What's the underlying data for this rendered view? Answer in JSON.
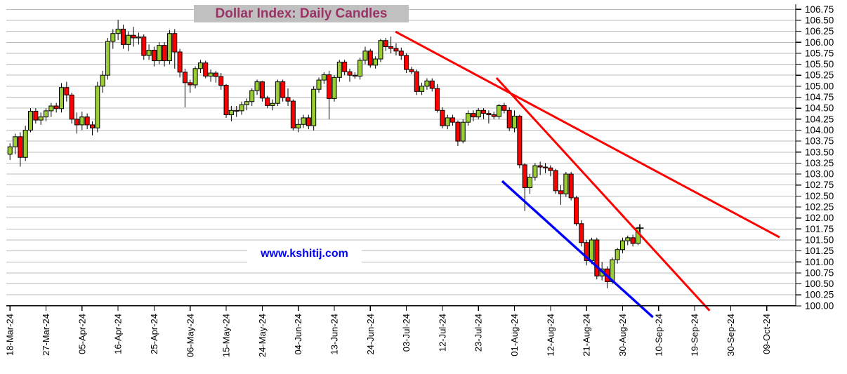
{
  "title": "Dollar Index: Daily Candles",
  "watermark": "www.kshitij.com",
  "colors": {
    "candle_up": "#9acd32",
    "candle_down": "#ff0000",
    "candle_border": "#000000",
    "wick": "#000000",
    "grid": "#bdbdbd",
    "axis": "#000000",
    "tick_label": "#000000",
    "title_text": "#993366",
    "title_bg": "#c0c0c0",
    "watermark_text": "#0000ff",
    "trend_red": "#ff0000",
    "trend_blue": "#0000ff",
    "last_price_marker": "#000000"
  },
  "chart_data": {
    "type": "candlestick",
    "title": "Dollar Index: Daily Candles",
    "xlabel": "",
    "ylabel": "",
    "ylim": [
      100.0,
      106.88
    ],
    "ytick_step": 0.25,
    "grid": true,
    "legend": false,
    "yticks": [
      "106.75",
      "106.50",
      "106.25",
      "106.00",
      "105.75",
      "105.50",
      "105.25",
      "105.00",
      "104.75",
      "104.50",
      "104.25",
      "104.00",
      "103.75",
      "103.50",
      "103.25",
      "103.00",
      "102.75",
      "102.50",
      "102.25",
      "102.00",
      "101.75",
      "101.50",
      "101.25",
      "101.00",
      "100.75",
      "100.50",
      "100.25",
      "100.00"
    ],
    "xticks": [
      {
        "label": "18-Mar-24",
        "index": 0
      },
      {
        "label": "27-Mar-24",
        "index": 7
      },
      {
        "label": "05-Apr-24",
        "index": 14
      },
      {
        "label": "16-Apr-24",
        "index": 21
      },
      {
        "label": "25-Apr-24",
        "index": 28
      },
      {
        "label": "06-May-24",
        "index": 35
      },
      {
        "label": "15-May-24",
        "index": 42
      },
      {
        "label": "24-May-24",
        "index": 49
      },
      {
        "label": "04-Jun-24",
        "index": 56
      },
      {
        "label": "13-Jun-24",
        "index": 63
      },
      {
        "label": "24-Jun-24",
        "index": 70
      },
      {
        "label": "03-Jul-24",
        "index": 77
      },
      {
        "label": "12-Jul-24",
        "index": 84
      },
      {
        "label": "23-Jul-24",
        "index": 91
      },
      {
        "label": "01-Aug-24",
        "index": 98
      },
      {
        "label": "12-Aug-24",
        "index": 105
      },
      {
        "label": "21-Aug-24",
        "index": 112
      },
      {
        "label": "30-Aug-24",
        "index": 119
      },
      {
        "label": "10-Sep-24",
        "index": 126
      },
      {
        "label": "19-Sep-24",
        "index": 133
      },
      {
        "label": "30-Sep-24",
        "index": 140
      },
      {
        "label": "09-Oct-24",
        "index": 147
      }
    ],
    "columns": [
      "date",
      "open",
      "high",
      "low",
      "close"
    ],
    "candles": [
      [
        "18-Mar-24",
        103.45,
        103.7,
        103.32,
        103.62
      ],
      [
        "19-Mar-24",
        103.62,
        103.92,
        103.45,
        103.85
      ],
      [
        "20-Mar-24",
        103.85,
        103.95,
        103.17,
        103.38
      ],
      [
        "21-Mar-24",
        103.38,
        104.1,
        103.3,
        104.0
      ],
      [
        "22-Mar-24",
        104.0,
        104.5,
        103.95,
        104.43
      ],
      [
        "25-Mar-24",
        104.43,
        104.5,
        104.15,
        104.23
      ],
      [
        "26-Mar-24",
        104.23,
        104.4,
        104.12,
        104.3
      ],
      [
        "27-Mar-24",
        104.3,
        104.5,
        104.2,
        104.44
      ],
      [
        "28-Mar-24",
        104.44,
        104.62,
        104.3,
        104.55
      ],
      [
        "29-Mar-24",
        104.55,
        104.62,
        104.4,
        104.49
      ],
      [
        "01-Apr-24",
        104.49,
        105.07,
        104.4,
        104.97
      ],
      [
        "02-Apr-24",
        104.97,
        105.1,
        104.65,
        104.8
      ],
      [
        "03-Apr-24",
        104.8,
        104.85,
        104.15,
        104.25
      ],
      [
        "04-Apr-24",
        104.25,
        104.4,
        103.92,
        104.12
      ],
      [
        "05-Apr-24",
        104.12,
        104.42,
        104.0,
        104.3
      ],
      [
        "08-Apr-24",
        104.3,
        104.38,
        104.02,
        104.12
      ],
      [
        "09-Apr-24",
        104.12,
        104.2,
        103.88,
        104.05
      ],
      [
        "10-Apr-24",
        104.05,
        105.1,
        103.95,
        105.0
      ],
      [
        "11-Apr-24",
        105.0,
        105.35,
        104.85,
        105.25
      ],
      [
        "12-Apr-24",
        105.25,
        106.1,
        105.15,
        106.02
      ],
      [
        "15-Apr-24",
        106.02,
        106.3,
        105.85,
        106.2
      ],
      [
        "16-Apr-24",
        106.2,
        106.51,
        106.05,
        106.3
      ],
      [
        "17-Apr-24",
        106.3,
        106.4,
        105.85,
        105.95
      ],
      [
        "18-Apr-24",
        105.95,
        106.25,
        105.8,
        106.16
      ],
      [
        "19-Apr-24",
        106.16,
        106.35,
        105.9,
        106.1
      ],
      [
        "22-Apr-24",
        106.1,
        106.22,
        105.95,
        106.12
      ],
      [
        "23-Apr-24",
        106.12,
        106.18,
        105.6,
        105.7
      ],
      [
        "24-Apr-24",
        105.7,
        105.95,
        105.6,
        105.82
      ],
      [
        "25-Apr-24",
        105.82,
        105.9,
        105.45,
        105.58
      ],
      [
        "26-Apr-24",
        105.58,
        106.0,
        105.5,
        105.93
      ],
      [
        "29-Apr-24",
        105.93,
        106.0,
        105.45,
        105.58
      ],
      [
        "30-Apr-24",
        105.58,
        106.28,
        105.5,
        106.2
      ],
      [
        "01-May-24",
        106.2,
        106.3,
        105.4,
        105.78
      ],
      [
        "02-May-24",
        105.78,
        105.85,
        105.2,
        105.32
      ],
      [
        "03-May-24",
        105.32,
        105.4,
        104.52,
        105.08
      ],
      [
        "06-May-24",
        105.08,
        105.15,
        104.85,
        105.03
      ],
      [
        "07-May-24",
        105.03,
        105.45,
        104.95,
        105.4
      ],
      [
        "08-May-24",
        105.4,
        105.6,
        105.3,
        105.53
      ],
      [
        "09-May-24",
        105.53,
        105.58,
        105.18,
        105.23
      ],
      [
        "10-May-24",
        105.23,
        105.38,
        105.1,
        105.3
      ],
      [
        "13-May-24",
        105.3,
        105.35,
        105.08,
        105.22
      ],
      [
        "14-May-24",
        105.22,
        105.3,
        104.92,
        105.02
      ],
      [
        "15-May-24",
        105.02,
        105.05,
        104.28,
        104.35
      ],
      [
        "16-May-24",
        104.35,
        104.55,
        104.2,
        104.45
      ],
      [
        "17-May-24",
        104.45,
        104.55,
        104.3,
        104.44
      ],
      [
        "20-May-24",
        104.44,
        104.65,
        104.35,
        104.58
      ],
      [
        "21-May-24",
        104.58,
        104.72,
        104.45,
        104.65
      ],
      [
        "22-May-24",
        104.65,
        104.95,
        104.55,
        104.9
      ],
      [
        "23-May-24",
        104.9,
        105.15,
        104.8,
        105.1
      ],
      [
        "24-May-24",
        105.1,
        105.12,
        104.65,
        104.73
      ],
      [
        "27-May-24",
        104.73,
        104.78,
        104.5,
        104.56
      ],
      [
        "28-May-24",
        104.56,
        104.7,
        104.45,
        104.61
      ],
      [
        "29-May-24",
        104.61,
        105.15,
        104.55,
        105.1
      ],
      [
        "30-May-24",
        105.1,
        105.15,
        104.65,
        104.74
      ],
      [
        "31-May-24",
        104.74,
        104.95,
        104.55,
        104.66
      ],
      [
        "03-Jun-24",
        104.66,
        104.7,
        103.99,
        104.05
      ],
      [
        "04-Jun-24",
        104.05,
        104.25,
        103.95,
        104.13
      ],
      [
        "05-Jun-24",
        104.13,
        104.35,
        104.05,
        104.28
      ],
      [
        "06-Jun-24",
        104.28,
        104.35,
        104.02,
        104.1
      ],
      [
        "07-Jun-24",
        104.1,
        105.0,
        103.99,
        104.93
      ],
      [
        "10-Jun-24",
        104.93,
        105.2,
        104.85,
        105.14
      ],
      [
        "11-Jun-24",
        105.14,
        105.32,
        105.05,
        105.26
      ],
      [
        "12-Jun-24",
        105.26,
        105.35,
        104.25,
        104.72
      ],
      [
        "13-Jun-24",
        104.72,
        105.25,
        104.65,
        105.2
      ],
      [
        "14-Jun-24",
        105.2,
        105.6,
        105.1,
        105.55
      ],
      [
        "17-Jun-24",
        105.55,
        105.6,
        105.25,
        105.33
      ],
      [
        "18-Jun-24",
        105.33,
        105.4,
        105.1,
        105.25
      ],
      [
        "19-Jun-24",
        105.25,
        105.32,
        105.17,
        105.23
      ],
      [
        "20-Jun-24",
        105.23,
        105.65,
        105.15,
        105.59
      ],
      [
        "21-Jun-24",
        105.59,
        105.9,
        105.5,
        105.8
      ],
      [
        "24-Jun-24",
        105.8,
        105.85,
        105.42,
        105.48
      ],
      [
        "25-Jun-24",
        105.48,
        105.68,
        105.4,
        105.62
      ],
      [
        "26-Jun-24",
        105.62,
        106.08,
        105.55,
        106.04
      ],
      [
        "27-Jun-24",
        106.04,
        106.1,
        105.8,
        105.9
      ],
      [
        "28-Jun-24",
        105.9,
        106.13,
        105.75,
        105.86
      ],
      [
        "01-Jul-24",
        105.86,
        105.98,
        105.7,
        105.8
      ],
      [
        "02-Jul-24",
        105.8,
        105.88,
        105.6,
        105.7
      ],
      [
        "03-Jul-24",
        105.7,
        105.75,
        105.3,
        105.38
      ],
      [
        "04-Jul-24",
        105.38,
        105.44,
        105.28,
        105.33
      ],
      [
        "05-Jul-24",
        105.33,
        105.38,
        104.8,
        104.88
      ],
      [
        "08-Jul-24",
        104.88,
        105.08,
        104.8,
        105.0
      ],
      [
        "09-Jul-24",
        105.0,
        105.18,
        104.92,
        105.12
      ],
      [
        "10-Jul-24",
        105.12,
        105.18,
        104.88,
        104.95
      ],
      [
        "11-Jul-24",
        104.95,
        105.05,
        104.4,
        104.45
      ],
      [
        "12-Jul-24",
        104.45,
        104.52,
        104.04,
        104.1
      ],
      [
        "15-Jul-24",
        104.1,
        104.35,
        104.02,
        104.28
      ],
      [
        "16-Jul-24",
        104.28,
        104.35,
        104.1,
        104.18
      ],
      [
        "17-Jul-24",
        104.18,
        104.22,
        103.64,
        103.75
      ],
      [
        "18-Jul-24",
        103.75,
        104.25,
        103.7,
        104.18
      ],
      [
        "19-Jul-24",
        104.18,
        104.45,
        104.1,
        104.38
      ],
      [
        "22-Jul-24",
        104.38,
        104.45,
        104.2,
        104.3
      ],
      [
        "23-Jul-24",
        104.3,
        104.5,
        104.25,
        104.45
      ],
      [
        "24-Jul-24",
        104.45,
        104.5,
        104.25,
        104.38
      ],
      [
        "25-Jul-24",
        104.38,
        104.45,
        104.15,
        104.35
      ],
      [
        "26-Jul-24",
        104.35,
        104.42,
        104.25,
        104.31
      ],
      [
        "29-Jul-24",
        104.31,
        104.6,
        104.25,
        104.56
      ],
      [
        "30-Jul-24",
        104.56,
        104.62,
        104.38,
        104.45
      ],
      [
        "31-Jul-24",
        104.45,
        104.52,
        103.98,
        104.05
      ],
      [
        "01-Aug-24",
        104.05,
        104.45,
        103.95,
        104.32
      ],
      [
        "02-Aug-24",
        104.32,
        104.35,
        103.13,
        103.21
      ],
      [
        "05-Aug-24",
        103.21,
        103.25,
        102.16,
        102.69
      ],
      [
        "06-Aug-24",
        102.69,
        103.0,
        102.55,
        102.93
      ],
      [
        "07-Aug-24",
        102.93,
        103.25,
        102.85,
        103.19
      ],
      [
        "08-Aug-24",
        103.19,
        103.28,
        102.98,
        103.16
      ],
      [
        "09-Aug-24",
        103.16,
        103.25,
        103.02,
        103.14
      ],
      [
        "12-Aug-24",
        103.14,
        103.2,
        102.95,
        103.08
      ],
      [
        "13-Aug-24",
        103.08,
        103.12,
        102.55,
        102.62
      ],
      [
        "14-Aug-24",
        102.62,
        102.75,
        102.3,
        102.55
      ],
      [
        "15-Aug-24",
        102.55,
        103.05,
        102.48,
        103.0
      ],
      [
        "16-Aug-24",
        103.0,
        103.05,
        102.4,
        102.46
      ],
      [
        "19-Aug-24",
        102.46,
        102.5,
        101.82,
        101.87
      ],
      [
        "20-Aug-24",
        101.87,
        101.95,
        101.35,
        101.44
      ],
      [
        "21-Aug-24",
        101.44,
        101.5,
        100.92,
        101.03
      ],
      [
        "22-Aug-24",
        101.03,
        101.55,
        100.95,
        101.5
      ],
      [
        "23-Aug-24",
        101.5,
        101.55,
        100.6,
        100.68
      ],
      [
        "26-Aug-24",
        100.68,
        101.0,
        100.58,
        100.84
      ],
      [
        "27-Aug-24",
        100.84,
        100.9,
        100.4,
        100.55
      ],
      [
        "28-Aug-24",
        100.55,
        101.1,
        100.5,
        101.05
      ],
      [
        "29-Aug-24",
        101.05,
        101.32,
        100.96,
        101.28
      ],
      [
        "30-Aug-24",
        101.28,
        101.55,
        101.2,
        101.48
      ],
      [
        "02-Sep-24",
        101.48,
        101.6,
        101.38,
        101.55
      ],
      [
        "03-Sep-24",
        101.55,
        101.62,
        101.35,
        101.42
      ],
      [
        "04-Sep-24",
        101.42,
        101.8,
        101.38,
        101.77
      ]
    ],
    "last_price_marker": {
      "index": 122,
      "value": 101.77,
      "symbol": "+"
    },
    "trendlines": [
      {
        "name": "resistance-1",
        "color": "#ff0000",
        "width": 3.0,
        "x1": 74.9,
        "y1": 106.24,
        "x2": 149.5,
        "y2": 101.56
      },
      {
        "name": "resistance-2",
        "color": "#ff0000",
        "width": 3.0,
        "x1": 94.5,
        "y1": 105.19,
        "x2": 135.9,
        "y2": 99.89
      },
      {
        "name": "support-channel",
        "color": "#0000ff",
        "width": 3.4,
        "x1": 95.6,
        "y1": 102.84,
        "x2": 124.9,
        "y2": 99.74
      }
    ]
  }
}
